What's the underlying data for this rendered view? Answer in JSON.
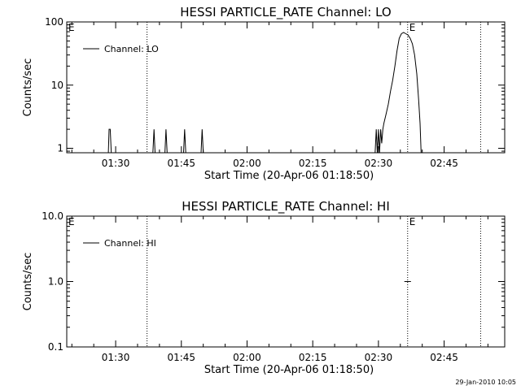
{
  "footer_timestamp": "29-Jan-2010 10:05",
  "chart_data": [
    {
      "type": "line",
      "title": "HESSI PARTICLE_RATE Channel: LO",
      "ylabel": "Counts/sec",
      "xlabel": "Start Time (20-Apr-06 01:18:50)",
      "y_scale": "log",
      "ylim": [
        0.85,
        100
      ],
      "y_ticks": [
        {
          "value": 1,
          "label": "1"
        },
        {
          "value": 10,
          "label": "10"
        },
        {
          "value": 100,
          "label": "100"
        }
      ],
      "xlim": [
        "01:18:50",
        "02:58:50"
      ],
      "x_ticks": [
        {
          "value": "01:30",
          "label": "01:30"
        },
        {
          "value": "01:45",
          "label": "01:45"
        },
        {
          "value": "02:00",
          "label": "02:00"
        },
        {
          "value": "02:15",
          "label": "02:15"
        },
        {
          "value": "02:30",
          "label": "02:30"
        },
        {
          "value": "02:45",
          "label": "02:45"
        }
      ],
      "legend": {
        "label": "Channel: LO",
        "position": "top-left"
      },
      "event_markers": [
        {
          "time": "01:18:50",
          "label": "E"
        },
        {
          "time": "01:37:10",
          "label": ""
        },
        {
          "time": "02:36:40",
          "label": "E"
        },
        {
          "time": "02:53:20",
          "label": ""
        }
      ],
      "series": [
        {
          "segments": [
            [
              [
                "01:28:20",
                0.85
              ],
              [
                "01:28:30",
                2.0
              ],
              [
                "01:28:45",
                2.0
              ],
              [
                "01:29:00",
                0.85
              ]
            ],
            [
              [
                "01:38:30",
                0.85
              ],
              [
                "01:38:45",
                2.0
              ],
              [
                "01:39:00",
                0.85
              ]
            ],
            [
              [
                "01:41:15",
                0.85
              ],
              [
                "01:41:30",
                2.0
              ],
              [
                "01:41:45",
                0.85
              ]
            ],
            [
              [
                "01:45:30",
                0.85
              ],
              [
                "01:45:45",
                2.0
              ],
              [
                "01:46:00",
                0.85
              ]
            ],
            [
              [
                "01:49:30",
                0.85
              ],
              [
                "01:49:45",
                2.0
              ],
              [
                "01:50:00",
                0.85
              ]
            ],
            [
              [
                "02:29:15",
                0.85
              ],
              [
                "02:29:30",
                2.0
              ],
              [
                "02:29:45",
                0.85
              ],
              [
                "02:30:00",
                2.0
              ],
              [
                "02:30:15",
                0.85
              ],
              [
                "02:30:30",
                2.0
              ],
              [
                "02:30:45",
                1.2
              ],
              [
                "02:31:00",
                2.0
              ],
              [
                "02:31:15",
                2.5
              ],
              [
                "02:31:45",
                3.5
              ],
              [
                "02:32:15",
                5.0
              ],
              [
                "02:32:45",
                8.0
              ],
              [
                "02:33:15",
                12.0
              ],
              [
                "02:33:45",
                20.0
              ],
              [
                "02:34:15",
                35.0
              ],
              [
                "02:34:45",
                55.0
              ],
              [
                "02:35:15",
                65.0
              ],
              [
                "02:35:45",
                68.0
              ],
              [
                "02:36:15",
                65.0
              ],
              [
                "02:36:45",
                62.0
              ],
              [
                "02:37:15",
                55.0
              ],
              [
                "02:37:45",
                45.0
              ],
              [
                "02:38:15",
                30.0
              ],
              [
                "02:38:45",
                15.0
              ],
              [
                "02:39:10",
                6.0
              ],
              [
                "02:39:30",
                2.5
              ],
              [
                "02:39:45",
                0.85
              ]
            ]
          ]
        }
      ]
    },
    {
      "type": "line",
      "title": "HESSI PARTICLE_RATE Channel: HI",
      "ylabel": "Counts/sec",
      "xlabel": "Start Time (20-Apr-06 01:18:50)",
      "y_scale": "log",
      "ylim": [
        0.1,
        10
      ],
      "y_ticks": [
        {
          "value": 0.1,
          "label": "0.1"
        },
        {
          "value": 1,
          "label": "1.0"
        },
        {
          "value": 10,
          "label": "10.0"
        }
      ],
      "xlim": [
        "01:18:50",
        "02:58:50"
      ],
      "x_ticks": [
        {
          "value": "01:30",
          "label": "01:30"
        },
        {
          "value": "01:45",
          "label": "01:45"
        },
        {
          "value": "02:00",
          "label": "02:00"
        },
        {
          "value": "02:15",
          "label": "02:15"
        },
        {
          "value": "02:30",
          "label": "02:30"
        },
        {
          "value": "02:45",
          "label": "02:45"
        }
      ],
      "legend": {
        "label": "Channel: HI",
        "position": "top-left"
      },
      "event_markers": [
        {
          "time": "01:18:50",
          "label": "E"
        },
        {
          "time": "01:37:10",
          "label": ""
        },
        {
          "time": "02:36:40",
          "label": "E"
        },
        {
          "time": "02:53:20",
          "label": ""
        }
      ],
      "series": [
        {
          "segments": [
            [
              [
                "02:35:55",
                1.0
              ],
              [
                "02:37:25",
                1.0
              ]
            ]
          ]
        }
      ]
    }
  ]
}
